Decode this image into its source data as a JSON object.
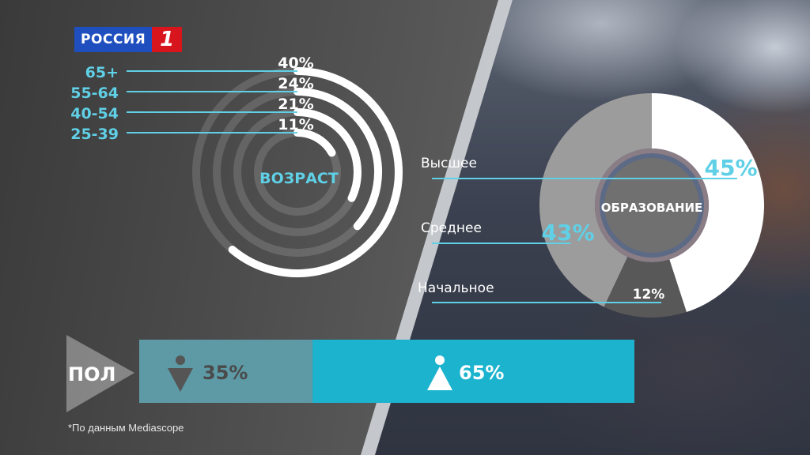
{
  "logo": {
    "text": "РОССИЯ",
    "number": "1"
  },
  "colors": {
    "accent": "#5fd0e6",
    "bar_male": "#5d9aa6",
    "bar_female": "#1cb3cf",
    "white": "#ffffff"
  },
  "chart_data": [
    {
      "type": "radial-bar",
      "title": "ВОЗРАСТ",
      "categories": [
        "65+",
        "55-64",
        "40-54",
        "25-39"
      ],
      "values": [
        40,
        24,
        21,
        11
      ],
      "value_labels": [
        "40%",
        "24%",
        "21%",
        "11%"
      ]
    },
    {
      "type": "pie",
      "title": "ОБРАЗОВАНИЕ",
      "categories": [
        "Высшее",
        "Среднее",
        "Начальное"
      ],
      "values": [
        45,
        43,
        12
      ],
      "value_labels": [
        "45%",
        "43%",
        "12%"
      ],
      "colors": [
        "#ffffff",
        "#9c9c9c",
        "#585858"
      ]
    },
    {
      "type": "bar",
      "title": "ПОЛ",
      "categories": [
        "male",
        "female"
      ],
      "values": [
        35,
        65
      ],
      "value_labels": [
        "35%",
        "65%"
      ]
    }
  ],
  "footnote": "*По данным Mediascope"
}
